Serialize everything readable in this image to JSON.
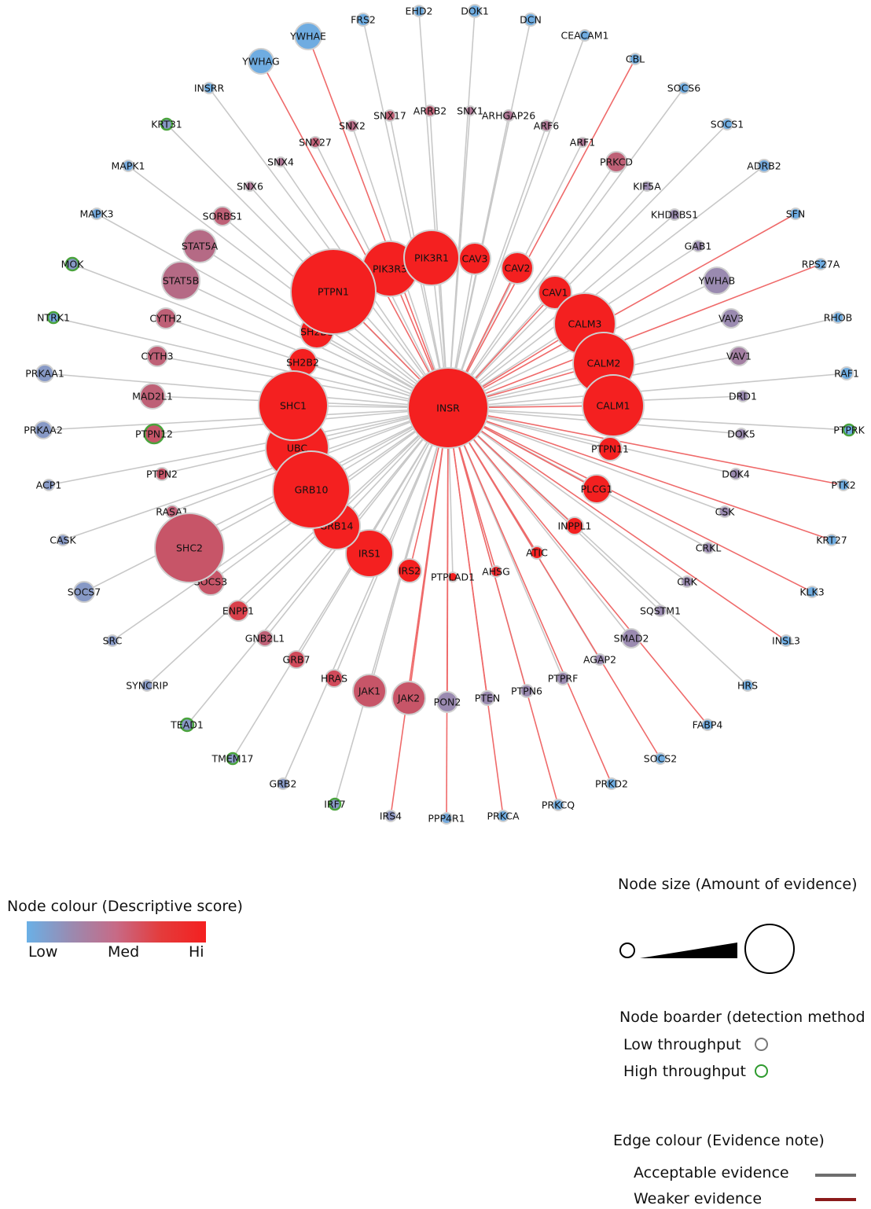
{
  "network": {
    "center": {
      "label": "INSR",
      "score": 1.0,
      "evidence": 1.0,
      "border": "low"
    },
    "nodes": [
      {
        "label": "PTPN1",
        "score": 1.0,
        "evidence": 1.0,
        "border": "low",
        "edge": "weak"
      },
      {
        "label": "PIK3R3",
        "score": 1.0,
        "evidence": 0.65,
        "border": "low",
        "edge": "weak"
      },
      {
        "label": "PIK3R1",
        "score": 1.0,
        "evidence": 0.7,
        "border": "low",
        "edge": "acceptable"
      },
      {
        "label": "CAV3",
        "score": 1.0,
        "evidence": 0.45,
        "border": "low",
        "edge": "acceptable"
      },
      {
        "label": "CAV2",
        "score": 1.0,
        "evidence": 0.45,
        "border": "low",
        "edge": "weak"
      },
      {
        "label": "CAV1",
        "score": 1.0,
        "evidence": 0.45,
        "border": "low",
        "edge": "weak"
      },
      {
        "label": "CALM3",
        "score": 1.0,
        "evidence": 0.8,
        "border": "low",
        "edge": "weak"
      },
      {
        "label": "CALM2",
        "score": 1.0,
        "evidence": 0.8,
        "border": "low",
        "edge": "weak"
      },
      {
        "label": "CALM1",
        "score": 1.0,
        "evidence": 0.8,
        "border": "low",
        "edge": "weak"
      },
      {
        "label": "PTPN11",
        "score": 1.0,
        "evidence": 0.4,
        "border": "low",
        "edge": "acceptable"
      },
      {
        "label": "PLCG1",
        "score": 1.0,
        "evidence": 0.4,
        "border": "low",
        "edge": "weak"
      },
      {
        "label": "INPPL1",
        "score": 1.0,
        "evidence": 0.25,
        "border": "low",
        "edge": "weak"
      },
      {
        "label": "ATIC",
        "score": 1.0,
        "evidence": 0.18,
        "border": "low",
        "edge": "weak"
      },
      {
        "label": "AHSG",
        "score": 0.95,
        "evidence": 0.18,
        "border": "low",
        "edge": "weak"
      },
      {
        "label": "PTPLAD1",
        "score": 1.0,
        "evidence": 0.2,
        "border": "low",
        "edge": "acceptable"
      },
      {
        "label": "IRS2",
        "score": 1.0,
        "evidence": 0.35,
        "border": "low",
        "edge": "weak"
      },
      {
        "label": "IRS1",
        "score": 1.0,
        "evidence": 0.6,
        "border": "low",
        "edge": "acceptable"
      },
      {
        "label": "GRB14",
        "score": 1.0,
        "evidence": 0.6,
        "border": "low",
        "edge": "acceptable"
      },
      {
        "label": "GRB10",
        "score": 1.0,
        "evidence": 0.9,
        "border": "low",
        "edge": "acceptable"
      },
      {
        "label": "UBC",
        "score": 1.0,
        "evidence": 0.8,
        "border": "low",
        "edge": "acceptable"
      },
      {
        "label": "SHC1",
        "score": 1.0,
        "evidence": 0.85,
        "border": "low",
        "edge": "acceptable"
      },
      {
        "label": "SH2B2",
        "score": 1.0,
        "evidence": 0.45,
        "border": "low",
        "edge": "acceptable"
      },
      {
        "label": "SH2B1",
        "score": 1.0,
        "evidence": 0.45,
        "border": "low",
        "edge": "acceptable"
      },
      {
        "label": "SHC2",
        "score": 0.75,
        "evidence": 1.0,
        "border": "low",
        "edge": "acceptable"
      },
      {
        "label": "SOCS3",
        "score": 0.75,
        "evidence": 0.3,
        "border": "low",
        "edge": "acceptable"
      },
      {
        "label": "RASA1",
        "score": 0.7,
        "evidence": 0.15,
        "border": "low",
        "edge": "acceptable"
      },
      {
        "label": "JAK1",
        "score": 0.75,
        "evidence": 0.45,
        "border": "low",
        "edge": "acceptable"
      },
      {
        "label": "JAK2",
        "score": 0.75,
        "evidence": 0.45,
        "border": "low",
        "edge": "weak"
      },
      {
        "label": "PON2",
        "score": 0.5,
        "evidence": 0.3,
        "border": "low",
        "edge": "weak"
      },
      {
        "label": "HRAS",
        "score": 0.8,
        "evidence": 0.25,
        "border": "low",
        "edge": "acceptable"
      },
      {
        "label": "GRB7",
        "score": 0.8,
        "evidence": 0.22,
        "border": "low",
        "edge": "acceptable"
      },
      {
        "label": "GNB2L1",
        "score": 0.7,
        "evidence": 0.2,
        "border": "low",
        "edge": "acceptable"
      },
      {
        "label": "ENPP1",
        "score": 0.85,
        "evidence": 0.25,
        "border": "low",
        "edge": "acceptable"
      },
      {
        "label": "STAT5A",
        "score": 0.65,
        "evidence": 0.55,
        "border": "low",
        "edge": "acceptable"
      },
      {
        "label": "STAT5B",
        "score": 0.65,
        "evidence": 0.55,
        "border": "low",
        "edge": "acceptable"
      },
      {
        "label": "SORBS1",
        "score": 0.7,
        "evidence": 0.25,
        "border": "low",
        "edge": "acceptable"
      },
      {
        "label": "CYTH2",
        "score": 0.7,
        "evidence": 0.25,
        "border": "low",
        "edge": "acceptable"
      },
      {
        "label": "CYTH3",
        "score": 0.7,
        "evidence": 0.25,
        "border": "low",
        "edge": "acceptable"
      },
      {
        "label": "MAD2L1",
        "score": 0.7,
        "evidence": 0.3,
        "border": "low",
        "edge": "acceptable"
      },
      {
        "label": "PTPN12",
        "score": 0.75,
        "evidence": 0.22,
        "border": "high",
        "edge": "acceptable"
      },
      {
        "label": "PTPN2",
        "score": 0.75,
        "evidence": 0.15,
        "border": "low",
        "edge": "acceptable"
      },
      {
        "label": "SNX27",
        "score": 0.7,
        "evidence": 0.12,
        "border": "low",
        "edge": "acceptable"
      },
      {
        "label": "SNX4",
        "score": 0.6,
        "evidence": 0.1,
        "border": "low",
        "edge": "acceptable"
      },
      {
        "label": "SNX6",
        "score": 0.6,
        "evidence": 0.1,
        "border": "low",
        "edge": "acceptable"
      },
      {
        "label": "SNX2",
        "score": 0.65,
        "evidence": 0.12,
        "border": "low",
        "edge": "acceptable"
      },
      {
        "label": "SNX17",
        "score": 0.7,
        "evidence": 0.12,
        "border": "low",
        "edge": "acceptable"
      },
      {
        "label": "ARRB2",
        "score": 0.7,
        "evidence": 0.12,
        "border": "low",
        "edge": "acceptable"
      },
      {
        "label": "SNX1",
        "score": 0.6,
        "evidence": 0.1,
        "border": "low",
        "edge": "acceptable"
      },
      {
        "label": "ARHGAP26",
        "score": 0.6,
        "evidence": 0.12,
        "border": "low",
        "edge": "acceptable"
      },
      {
        "label": "ARF6",
        "score": 0.6,
        "evidence": 0.12,
        "border": "low",
        "edge": "acceptable"
      },
      {
        "label": "ARF1",
        "score": 0.6,
        "evidence": 0.1,
        "border": "low",
        "edge": "acceptable"
      },
      {
        "label": "PRKCD",
        "score": 0.7,
        "evidence": 0.25,
        "border": "low",
        "edge": "acceptable"
      },
      {
        "label": "KIF5A",
        "score": 0.5,
        "evidence": 0.1,
        "border": "low",
        "edge": "acceptable"
      },
      {
        "label": "KHDRBS1",
        "score": 0.5,
        "evidence": 0.1,
        "border": "low",
        "edge": "acceptable"
      },
      {
        "label": "GAB1",
        "score": 0.5,
        "evidence": 0.1,
        "border": "low",
        "edge": "acceptable"
      },
      {
        "label": "YWHAB",
        "score": 0.5,
        "evidence": 0.35,
        "border": "low",
        "edge": "acceptable"
      },
      {
        "label": "VAV3",
        "score": 0.5,
        "evidence": 0.2,
        "border": "low",
        "edge": "acceptable"
      },
      {
        "label": "VAV1",
        "score": 0.55,
        "evidence": 0.2,
        "border": "low",
        "edge": "acceptable"
      },
      {
        "label": "DRD1",
        "score": 0.5,
        "evidence": 0.1,
        "border": "low",
        "edge": "acceptable"
      },
      {
        "label": "DOK5",
        "score": 0.5,
        "evidence": 0.1,
        "border": "low",
        "edge": "acceptable"
      },
      {
        "label": "DOK4",
        "score": 0.5,
        "evidence": 0.1,
        "border": "low",
        "edge": "acceptable"
      },
      {
        "label": "CSK",
        "score": 0.5,
        "evidence": 0.1,
        "border": "low",
        "edge": "acceptable"
      },
      {
        "label": "CRKL",
        "score": 0.5,
        "evidence": 0.1,
        "border": "low",
        "edge": "acceptable"
      },
      {
        "label": "CRK",
        "score": 0.5,
        "evidence": 0.1,
        "border": "low",
        "edge": "acceptable"
      },
      {
        "label": "SQSTM1",
        "score": 0.5,
        "evidence": 0.1,
        "border": "low",
        "edge": "acceptable"
      },
      {
        "label": "SMAD2",
        "score": 0.5,
        "evidence": 0.25,
        "border": "low",
        "edge": "acceptable"
      },
      {
        "label": "AGAP2",
        "score": 0.5,
        "evidence": 0.1,
        "border": "low",
        "edge": "acceptable"
      },
      {
        "label": "PTPRF",
        "score": 0.5,
        "evidence": 0.12,
        "border": "low",
        "edge": "acceptable"
      },
      {
        "label": "PTPN6",
        "score": 0.5,
        "evidence": 0.12,
        "border": "low",
        "edge": "acceptable"
      },
      {
        "label": "PTEN",
        "score": 0.5,
        "evidence": 0.15,
        "border": "low",
        "edge": "weak"
      },
      {
        "label": "YWHAE",
        "score": 0.05,
        "evidence": 0.4,
        "border": "low",
        "edge": "weak"
      },
      {
        "label": "YWHAG",
        "score": 0.05,
        "evidence": 0.35,
        "border": "low",
        "edge": "weak"
      },
      {
        "label": "FRS2",
        "score": 0.05,
        "evidence": 0.12,
        "border": "low",
        "edge": "acceptable"
      },
      {
        "label": "EHD2",
        "score": 0.05,
        "evidence": 0.1,
        "border": "low",
        "edge": "acceptable"
      },
      {
        "label": "DOK1",
        "score": 0.05,
        "evidence": 0.12,
        "border": "low",
        "edge": "acceptable"
      },
      {
        "label": "DCN",
        "score": 0.05,
        "evidence": 0.12,
        "border": "low",
        "edge": "acceptable"
      },
      {
        "label": "CEACAM1",
        "score": 0.05,
        "evidence": 0.1,
        "border": "low",
        "edge": "acceptable"
      },
      {
        "label": "CBL",
        "score": 0.05,
        "evidence": 0.1,
        "border": "low",
        "edge": "weak"
      },
      {
        "label": "SOCS6",
        "score": 0.05,
        "evidence": 0.1,
        "border": "low",
        "edge": "acceptable"
      },
      {
        "label": "SOCS1",
        "score": 0.05,
        "evidence": 0.1,
        "border": "low",
        "edge": "acceptable"
      },
      {
        "label": "ADRB2",
        "score": 0.1,
        "evidence": 0.12,
        "border": "low",
        "edge": "acceptable"
      },
      {
        "label": "SFN",
        "score": 0.05,
        "evidence": 0.1,
        "border": "low",
        "edge": "weak"
      },
      {
        "label": "RPS27A",
        "score": 0.05,
        "evidence": 0.1,
        "border": "low",
        "edge": "weak"
      },
      {
        "label": "RHOB",
        "score": 0.05,
        "evidence": 0.1,
        "border": "low",
        "edge": "acceptable"
      },
      {
        "label": "RAF1",
        "score": 0.05,
        "evidence": 0.12,
        "border": "low",
        "edge": "acceptable"
      },
      {
        "label": "PTPRK",
        "score": 0.05,
        "evidence": 0.1,
        "border": "high",
        "edge": "acceptable"
      },
      {
        "label": "PTK2",
        "score": 0.05,
        "evidence": 0.1,
        "border": "low",
        "edge": "weak"
      },
      {
        "label": "KRT27",
        "score": 0.05,
        "evidence": 0.1,
        "border": "low",
        "edge": "weak"
      },
      {
        "label": "KLK3",
        "score": 0.05,
        "evidence": 0.1,
        "border": "low",
        "edge": "weak"
      },
      {
        "label": "INSL3",
        "score": 0.05,
        "evidence": 0.1,
        "border": "low",
        "edge": "weak"
      },
      {
        "label": "HRS",
        "score": 0.05,
        "evidence": 0.1,
        "border": "low",
        "edge": "acceptable"
      },
      {
        "label": "FABP4",
        "score": 0.05,
        "evidence": 0.1,
        "border": "low",
        "edge": "weak"
      },
      {
        "label": "SOCS2",
        "score": 0.05,
        "evidence": 0.1,
        "border": "low",
        "edge": "weak"
      },
      {
        "label": "PRKD2",
        "score": 0.05,
        "evidence": 0.1,
        "border": "low",
        "edge": "weak"
      },
      {
        "label": "PRKCQ",
        "score": 0.05,
        "evidence": 0.1,
        "border": "low",
        "edge": "weak"
      },
      {
        "label": "PRKCA",
        "score": 0.05,
        "evidence": 0.1,
        "border": "low",
        "edge": "weak"
      },
      {
        "label": "PPP4R1",
        "score": 0.1,
        "evidence": 0.1,
        "border": "low",
        "edge": "weak"
      },
      {
        "label": "IRS4",
        "score": 0.35,
        "evidence": 0.1,
        "border": "low",
        "edge": "weak"
      },
      {
        "label": "IRF7",
        "score": 0.3,
        "evidence": 0.1,
        "border": "high",
        "edge": "acceptable"
      },
      {
        "label": "GRB2",
        "score": 0.3,
        "evidence": 0.1,
        "border": "low",
        "edge": "acceptable"
      },
      {
        "label": "TMEM17",
        "score": 0.3,
        "evidence": 0.1,
        "border": "high",
        "edge": "acceptable"
      },
      {
        "label": "TEAD1",
        "score": 0.3,
        "evidence": 0.1,
        "border": "high",
        "edge": "acceptable"
      },
      {
        "label": "SYNCRIP",
        "score": 0.3,
        "evidence": 0.1,
        "border": "low",
        "edge": "acceptable"
      },
      {
        "label": "SRC",
        "score": 0.3,
        "evidence": 0.1,
        "border": "low",
        "edge": "acceptable"
      },
      {
        "label": "SOCS7",
        "score": 0.3,
        "evidence": 0.3,
        "border": "low",
        "edge": "acceptable"
      },
      {
        "label": "CASK",
        "score": 0.3,
        "evidence": 0.1,
        "border": "low",
        "edge": "acceptable"
      },
      {
        "label": "ACP1",
        "score": 0.3,
        "evidence": 0.1,
        "border": "low",
        "edge": "acceptable"
      },
      {
        "label": "PRKAA2",
        "score": 0.3,
        "evidence": 0.2,
        "border": "low",
        "edge": "acceptable"
      },
      {
        "label": "PRKAA1",
        "score": 0.3,
        "evidence": 0.2,
        "border": "low",
        "edge": "acceptable"
      },
      {
        "label": "NTRK1",
        "score": 0.1,
        "evidence": 0.1,
        "border": "high",
        "edge": "acceptable"
      },
      {
        "label": "MOK",
        "score": 0.3,
        "evidence": 0.1,
        "border": "high",
        "edge": "acceptable"
      },
      {
        "label": "MAPK3",
        "score": 0.1,
        "evidence": 0.1,
        "border": "low",
        "edge": "acceptable"
      },
      {
        "label": "MAPK1",
        "score": 0.1,
        "evidence": 0.1,
        "border": "low",
        "edge": "acceptable"
      },
      {
        "label": "KRT31",
        "score": 0.3,
        "evidence": 0.1,
        "border": "high",
        "edge": "acceptable"
      },
      {
        "label": "INSRR",
        "score": 0.05,
        "evidence": 0.1,
        "border": "low",
        "edge": "acceptable"
      }
    ]
  },
  "legend": {
    "node_colour": {
      "title": "Node colour (Descriptive score)",
      "low": "Low",
      "med": "Med",
      "hi": "Hi"
    },
    "node_size": {
      "title": "Node size (Amount of evidence)"
    },
    "node_border": {
      "title": "Node boarder (detection method",
      "low": "Low throughput",
      "high": "High throughput"
    },
    "edge_colour": {
      "title": "Edge colour (Evidence note)",
      "acceptable": "Acceptable evidence",
      "weaker": "Weaker evidence"
    }
  },
  "colors": {
    "low": "#6ab0e6",
    "med": "#9a8ab0",
    "high": "#f42020",
    "edge_acceptable": "#c8c8c8",
    "edge_weak": "#ef6a6a",
    "legend_edge_acceptable": "#6e6e6e",
    "legend_edge_weak": "#8b1a1a",
    "border_low": "#cfcfcf",
    "border_high": "#4aa33c"
  }
}
